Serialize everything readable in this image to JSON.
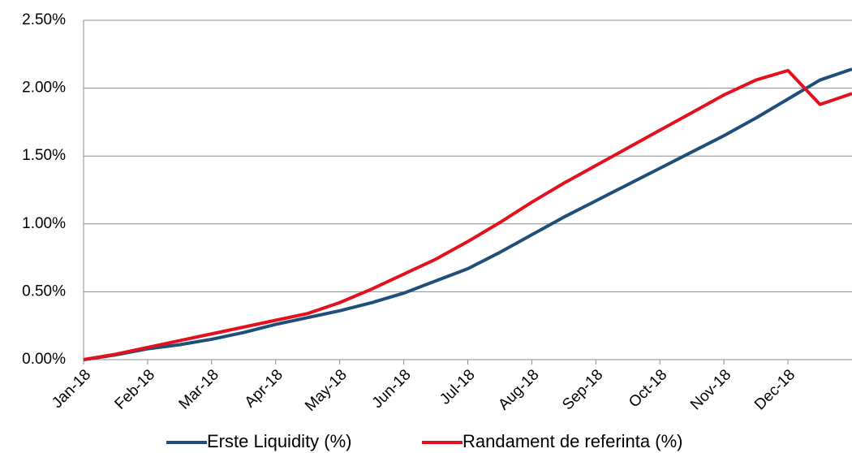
{
  "chart_data": {
    "type": "line",
    "categories": [
      "Jan-18",
      null,
      "Feb-18",
      null,
      "Mar-18",
      null,
      "Apr-18",
      null,
      "May-18",
      null,
      "Jun-18",
      null,
      "Jul-18",
      null,
      "Aug-18",
      null,
      "Sep-18",
      null,
      "Oct-18",
      null,
      "Nov-18",
      null,
      "Dec-18",
      null,
      null
    ],
    "series": [
      {
        "name": "Erste Liquidity (%)",
        "color": "#1f4e79",
        "values": [
          0,
          0.035,
          0.08,
          0.11,
          0.15,
          0.2,
          0.26,
          0.31,
          0.36,
          0.42,
          0.49,
          0.58,
          0.67,
          0.79,
          0.92,
          1.05,
          1.17,
          1.29,
          1.41,
          1.53,
          1.65,
          1.78,
          1.92,
          2.06,
          2.14
        ]
      },
      {
        "name": "Randament de referinta (%)",
        "color": "#e3101e",
        "values": [
          0,
          0.04,
          0.09,
          0.14,
          0.19,
          0.24,
          0.29,
          0.34,
          0.42,
          0.52,
          0.63,
          0.74,
          0.87,
          1.01,
          1.16,
          1.3,
          1.43,
          1.56,
          1.69,
          1.82,
          1.95,
          2.06,
          2.13,
          1.88,
          1.96
        ]
      }
    ],
    "ylim": [
      0,
      2.5
    ],
    "yticks": [
      {
        "value": 0,
        "label": "0.00%"
      },
      {
        "value": 0.5,
        "label": "0.50%"
      },
      {
        "value": 1,
        "label": "1.00%"
      },
      {
        "value": 1.5,
        "label": "1.50%"
      },
      {
        "value": 2,
        "label": "2.00%"
      },
      {
        "value": 2.5,
        "label": "2.50%"
      }
    ],
    "grid": true,
    "legend": "bottom"
  }
}
